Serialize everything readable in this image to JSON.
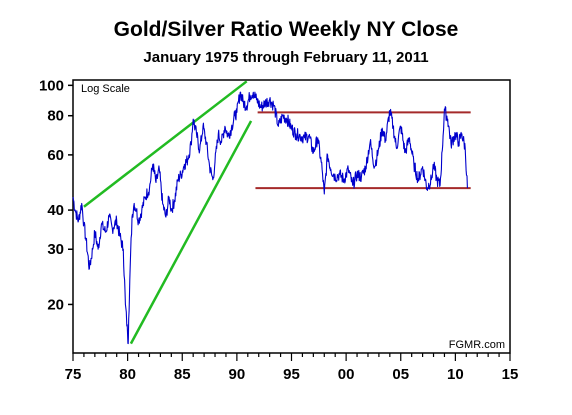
{
  "chart_data": {
    "type": "line",
    "title": "Gold/Silver Ratio Weekly NY Close",
    "subtitle": "January 1975 through February 11, 2011",
    "xlabel": "",
    "ylabel": "",
    "yscale": "log",
    "scale_note": "Log Scale",
    "source_note": "FGMR.com",
    "xlim": [
      1975,
      2015
    ],
    "ylim": [
      14,
      104
    ],
    "x_ticks": [
      1975,
      1980,
      1985,
      1990,
      1995,
      2000,
      2005,
      2010,
      2015
    ],
    "x_tick_labels": [
      "75",
      "80",
      "85",
      "90",
      "95",
      "00",
      "05",
      "10",
      "15"
    ],
    "y_ticks": [
      20,
      30,
      40,
      60,
      80,
      100
    ],
    "y_tick_labels": [
      "20",
      "30",
      "40",
      "60",
      "80",
      "100"
    ],
    "grid": false,
    "colors": {
      "series": "#0000cc",
      "trendlines": "#22bb22",
      "channel": "#a52a2a",
      "axis": "#000000"
    },
    "series": [
      {
        "x": [
          1975.0,
          1975.2,
          1975.5,
          1975.8,
          1976.0,
          1976.2,
          1976.5,
          1976.8,
          1977.0,
          1977.3,
          1977.6,
          1978.0,
          1978.3,
          1978.6,
          1979.0,
          1979.3,
          1979.6,
          1979.8,
          1980.0,
          1980.05,
          1980.1,
          1980.2,
          1980.4,
          1980.6,
          1980.8,
          1981.0,
          1981.3,
          1981.6,
          1982.0,
          1982.3,
          1982.6,
          1982.9,
          1983.2,
          1983.5,
          1983.8,
          1984.0,
          1984.3,
          1984.6,
          1984.9,
          1985.2,
          1985.5,
          1985.8,
          1986.0,
          1986.3,
          1986.6,
          1986.9,
          1987.2,
          1987.5,
          1987.8,
          1988.0,
          1988.3,
          1988.6,
          1988.9,
          1989.2,
          1989.5,
          1989.8,
          1990.0,
          1990.3,
          1990.6,
          1990.9,
          1991.2,
          1991.5,
          1991.8,
          1992.2,
          1992.6,
          1993.0,
          1993.4,
          1993.8,
          1994.2,
          1994.6,
          1995.0,
          1995.4,
          1995.8,
          1996.2,
          1996.6,
          1997.0,
          1997.4,
          1997.8,
          1998.0,
          1998.3,
          1998.6,
          1999.0,
          1999.4,
          1999.8,
          2000.2,
          2000.6,
          2001.0,
          2001.4,
          2001.8,
          2002.2,
          2002.6,
          2003.0,
          2003.3,
          2003.6,
          2004.0,
          2004.3,
          2004.6,
          2005.0,
          2005.4,
          2005.8,
          2006.2,
          2006.6,
          2007.0,
          2007.4,
          2007.8,
          2008.0,
          2008.3,
          2008.6,
          2008.8,
          2009.0,
          2009.3,
          2009.6,
          2010.0,
          2010.3,
          2010.6,
          2010.9,
          2011.1
        ],
        "y": [
          44,
          40,
          37,
          42,
          36,
          32,
          26,
          30,
          34,
          30,
          36,
          34,
          38,
          35,
          37,
          33,
          30,
          20,
          16,
          15,
          18,
          24,
          38,
          42,
          40,
          37,
          40,
          44,
          47,
          56,
          49,
          54,
          42,
          38,
          44,
          40,
          43,
          50,
          52,
          56,
          58,
          65,
          78,
          70,
          62,
          74,
          66,
          55,
          50,
          57,
          70,
          66,
          74,
          69,
          73,
          80,
          82,
          95,
          88,
          86,
          93,
          95,
          90,
          85,
          88,
          90,
          86,
          74,
          80,
          78,
          73,
          70,
          69,
          68,
          69,
          61,
          68,
          54,
          45,
          60,
          54,
          51,
          52,
          50,
          54,
          48,
          52,
          51,
          55,
          66,
          55,
          63,
          73,
          67,
          83,
          74,
          63,
          74,
          61,
          68,
          56,
          50,
          55,
          47,
          50,
          56,
          50,
          48,
          62,
          84,
          78,
          65,
          70,
          66,
          70,
          63,
          47
        ]
      }
    ],
    "annotations": [
      {
        "type": "trendline",
        "color": "green",
        "x": [
          1976.0,
          1990.9
        ],
        "y": [
          41,
          103
        ]
      },
      {
        "type": "trendline",
        "color": "green",
        "x": [
          1980.3,
          1991.3
        ],
        "y": [
          15,
          77
        ]
      },
      {
        "type": "channel",
        "color": "brown",
        "x": [
          1991.9,
          2011.4
        ],
        "y": [
          82,
          82
        ]
      },
      {
        "type": "channel",
        "color": "brown",
        "x": [
          1991.7,
          2011.4
        ],
        "y": [
          47,
          47
        ]
      }
    ]
  }
}
